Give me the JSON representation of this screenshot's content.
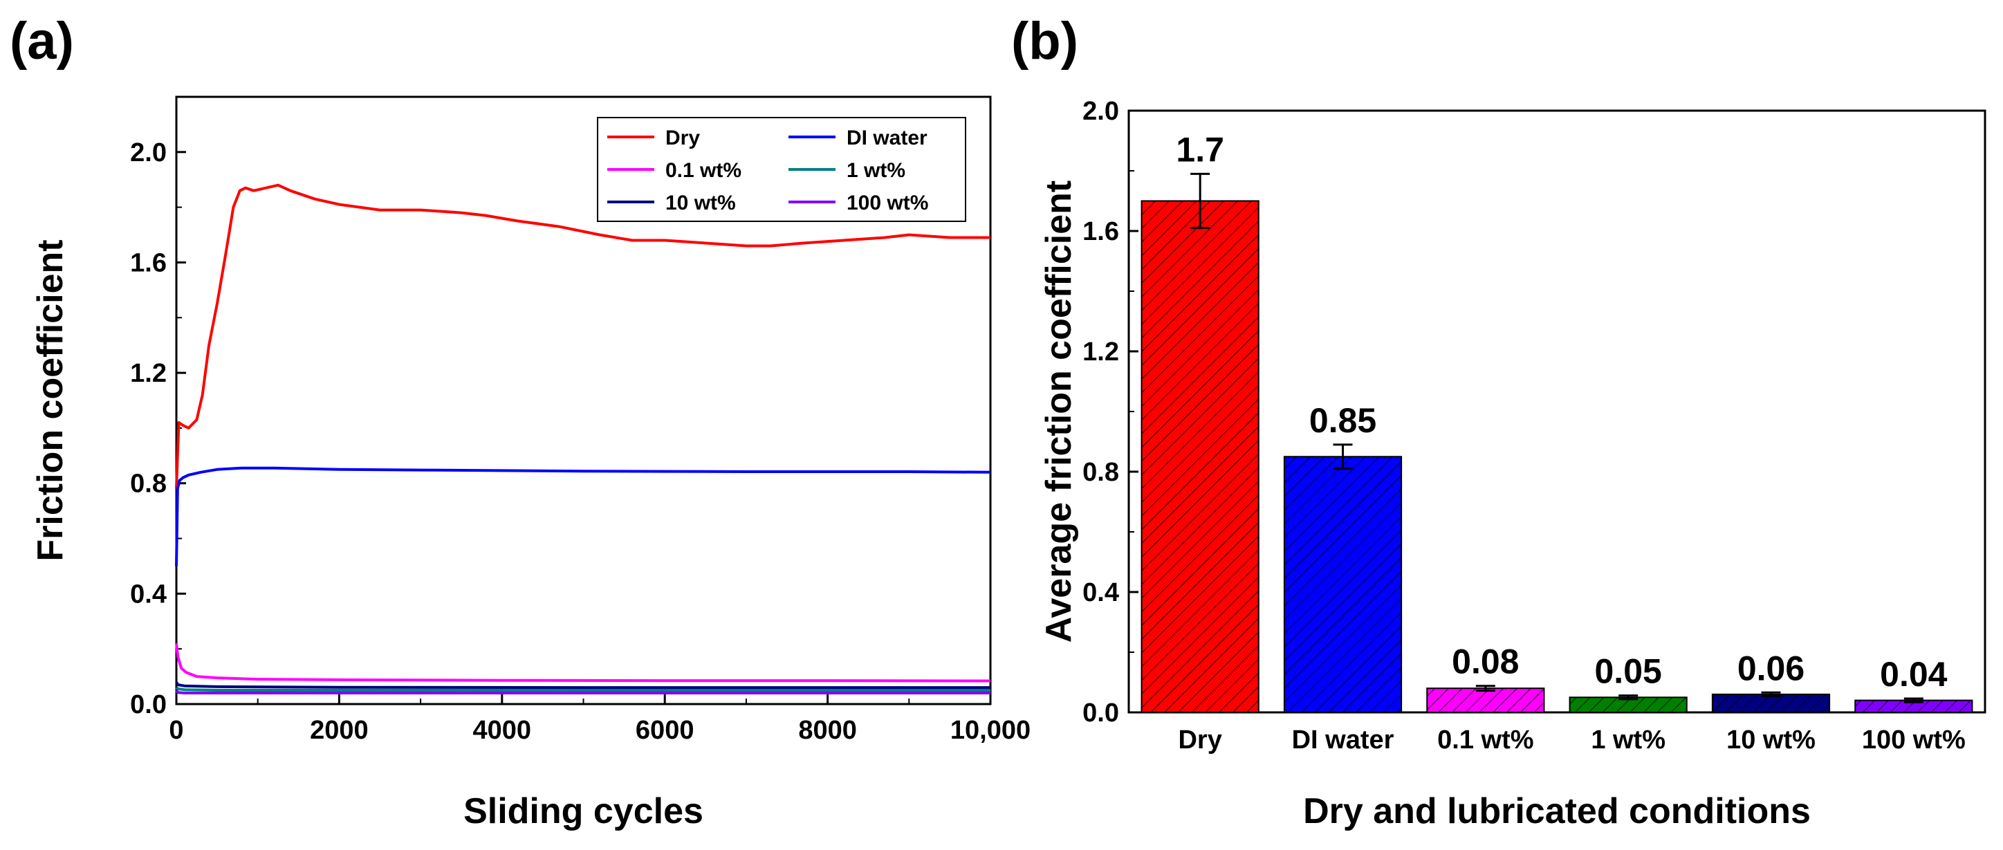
{
  "chart_data": [
    {
      "panel": "(a)",
      "type": "line",
      "title": "",
      "xlabel": "Sliding cycles",
      "ylabel": "Friction coefficient",
      "xlim": [
        0,
        10000
      ],
      "ylim": [
        0,
        2.2
      ],
      "xticks": [
        0,
        2000,
        4000,
        6000,
        8000,
        10000
      ],
      "xtick_labels": [
        "0",
        "2000",
        "4000",
        "6000",
        "8000",
        "10,000"
      ],
      "yticks": [
        0.0,
        0.4,
        0.8,
        1.2,
        1.6,
        2.0
      ],
      "ytick_labels": [
        "0.0",
        "0.4",
        "0.8",
        "1.2",
        "1.6",
        "2.0"
      ],
      "legend_position": "top-right",
      "series": [
        {
          "name": "Dry",
          "color": "#ff0000",
          "x": [
            0,
            30,
            80,
            150,
            250,
            320,
            400,
            500,
            600,
            700,
            780,
            850,
            950,
            1100,
            1250,
            1400,
            1700,
            2000,
            2500,
            3000,
            3500,
            3800,
            4200,
            4700,
            5200,
            5600,
            6000,
            6500,
            7000,
            7300,
            7700,
            8200,
            8700,
            9000,
            9500,
            10000
          ],
          "y": [
            0.78,
            1.02,
            1.01,
            1.0,
            1.03,
            1.12,
            1.3,
            1.45,
            1.62,
            1.8,
            1.86,
            1.87,
            1.86,
            1.87,
            1.88,
            1.86,
            1.83,
            1.81,
            1.79,
            1.79,
            1.78,
            1.77,
            1.75,
            1.73,
            1.7,
            1.68,
            1.68,
            1.67,
            1.66,
            1.66,
            1.67,
            1.68,
            1.69,
            1.7,
            1.69,
            1.69
          ]
        },
        {
          "name": "DI water",
          "color": "#0000ff",
          "x": [
            0,
            15,
            40,
            80,
            150,
            300,
            500,
            800,
            1200,
            2000,
            3000,
            4000,
            5000,
            6000,
            7000,
            8000,
            9000,
            10000
          ],
          "y": [
            0.5,
            0.78,
            0.81,
            0.82,
            0.83,
            0.84,
            0.85,
            0.855,
            0.855,
            0.85,
            0.848,
            0.846,
            0.844,
            0.843,
            0.842,
            0.842,
            0.842,
            0.84
          ]
        },
        {
          "name": "0.1 wt%",
          "color": "#ff00ff",
          "x": [
            0,
            20,
            60,
            120,
            250,
            500,
            1000,
            2000,
            4000,
            6000,
            8000,
            10000
          ],
          "y": [
            0.22,
            0.17,
            0.13,
            0.115,
            0.1,
            0.095,
            0.09,
            0.088,
            0.086,
            0.085,
            0.085,
            0.084
          ]
        },
        {
          "name": "1 wt%",
          "color": "#008080",
          "x": [
            0,
            20,
            100,
            500,
            2000,
            5000,
            10000
          ],
          "y": [
            0.06,
            0.055,
            0.052,
            0.05,
            0.05,
            0.05,
            0.05
          ]
        },
        {
          "name": "10 wt%",
          "color": "#000080",
          "x": [
            0,
            20,
            100,
            500,
            2000,
            5000,
            10000
          ],
          "y": [
            0.08,
            0.07,
            0.066,
            0.063,
            0.061,
            0.06,
            0.06
          ]
        },
        {
          "name": "100 wt%",
          "color": "#8000ff",
          "x": [
            0,
            20,
            100,
            500,
            2000,
            5000,
            10000
          ],
          "y": [
            0.05,
            0.042,
            0.04,
            0.04,
            0.04,
            0.04,
            0.04
          ]
        }
      ]
    },
    {
      "panel": "(b)",
      "type": "bar",
      "title": "",
      "xlabel": "Dry and lubricated conditions",
      "ylabel": "Average friction coefficient",
      "ylim": [
        0,
        2.0
      ],
      "yticks": [
        0.0,
        0.4,
        0.8,
        1.2,
        1.6,
        2.0
      ],
      "ytick_labels": [
        "0.0",
        "0.4",
        "0.8",
        "1.2",
        "1.6",
        "2.0"
      ],
      "categories": [
        "Dry",
        "DI water",
        "0.1 wt%",
        "1 wt%",
        "10 wt%",
        "100 wt%"
      ],
      "values": [
        1.7,
        0.85,
        0.08,
        0.05,
        0.06,
        0.04
      ],
      "value_labels": [
        "1.7",
        "0.85",
        "0.08",
        "0.05",
        "0.06",
        "0.04"
      ],
      "errors": [
        0.09,
        0.04,
        0.008,
        0.006,
        0.006,
        0.006
      ],
      "colors": [
        "#ff0000",
        "#0000ff",
        "#ff00ff",
        "#008000",
        "#000080",
        "#8000ff"
      ],
      "hatch": "diagonal"
    }
  ]
}
